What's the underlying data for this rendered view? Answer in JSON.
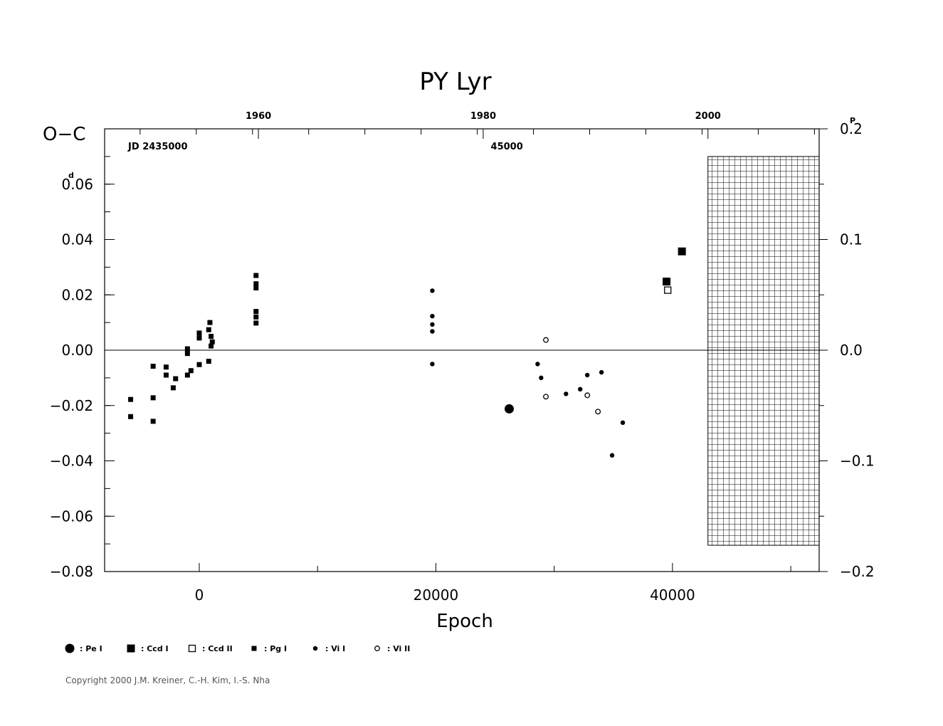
{
  "chart_data": {
    "type": "scatter",
    "title": "PY  Lyr",
    "ylabel": "O−C",
    "xlabel": "Epoch",
    "xlim": [
      -8000,
      52400
    ],
    "ylim": [
      -0.08,
      0.08
    ],
    "right_ylim": [
      -0.2,
      0.2
    ],
    "x_ticks": [
      {
        "value": 0,
        "label": "0"
      },
      {
        "value": 20000,
        "label": "20000"
      },
      {
        "value": 40000,
        "label": "40000"
      }
    ],
    "y_ticks": [
      {
        "value": 0.06,
        "label": "0.06",
        "unit": "d"
      },
      {
        "value": 0.04,
        "label": "0.04"
      },
      {
        "value": 0.02,
        "label": "0.02"
      },
      {
        "value": 0.0,
        "label": "0.00"
      },
      {
        "value": -0.02,
        "label": "−0.02"
      },
      {
        "value": -0.04,
        "label": "−0.04"
      },
      {
        "value": -0.06,
        "label": "−0.06"
      },
      {
        "value": -0.08,
        "label": "−0.08"
      }
    ],
    "right_ticks": [
      {
        "value": 0.2,
        "label": "0.2",
        "unit": "P"
      },
      {
        "value": 0.1,
        "label": "0.1"
      },
      {
        "value": 0.0,
        "label": "0.0"
      },
      {
        "value": -0.1,
        "label": "−0.1"
      },
      {
        "value": -0.2,
        "label": "−0.2"
      }
    ],
    "top_years": [
      {
        "value": 5000,
        "label": "1960"
      },
      {
        "value": 24000,
        "label": "1980"
      },
      {
        "value": 43000,
        "label": "2000"
      }
    ],
    "jd_labels": [
      {
        "value": -3500,
        "label": "JD  2435000"
      },
      {
        "value": 26000,
        "label": "45000"
      }
    ],
    "hatched_region_x_start": 43000,
    "series": [
      {
        "name": "Pe I",
        "marker": "filled-circle-large",
        "points": [
          [
            26200,
            -0.0212
          ]
        ]
      },
      {
        "name": "Ccd I",
        "marker": "filled-square-large",
        "points": [
          [
            39500,
            0.0248
          ],
          [
            40800,
            0.0357
          ]
        ]
      },
      {
        "name": "Ccd II",
        "marker": "open-square",
        "points": [
          [
            39600,
            0.0217
          ]
        ]
      },
      {
        "name": "Pg I",
        "marker": "filled-square-small",
        "points": [
          [
            -5800,
            -0.0178
          ],
          [
            -5800,
            -0.024
          ],
          [
            -3900,
            -0.0058
          ],
          [
            -3900,
            -0.0172
          ],
          [
            -3900,
            -0.0257
          ],
          [
            -2800,
            -0.0061
          ],
          [
            -2800,
            -0.009
          ],
          [
            -2200,
            -0.0136
          ],
          [
            -2000,
            -0.0103
          ],
          [
            -1000,
            0.0005
          ],
          [
            -1000,
            -0.0012
          ],
          [
            -1000,
            -0.009
          ],
          [
            -700,
            -0.0074
          ],
          [
            0,
            0.0062
          ],
          [
            0,
            0.0044
          ],
          [
            0,
            -0.0052
          ],
          [
            800,
            0.0074
          ],
          [
            900,
            0.01
          ],
          [
            800,
            -0.004
          ],
          [
            1000,
            0.005
          ],
          [
            1100,
            0.003
          ],
          [
            1000,
            0.0015
          ],
          [
            4800,
            0.027
          ],
          [
            4800,
            0.024
          ],
          [
            4800,
            0.0225
          ],
          [
            4800,
            0.014
          ],
          [
            4800,
            0.012
          ],
          [
            4800,
            0.0098
          ]
        ]
      },
      {
        "name": "Vi I",
        "marker": "filled-circle-small",
        "points": [
          [
            19700,
            0.0215
          ],
          [
            19700,
            0.0123
          ],
          [
            19700,
            0.0093
          ],
          [
            19700,
            0.0068
          ],
          [
            19700,
            -0.005
          ],
          [
            28600,
            -0.005
          ],
          [
            28900,
            -0.01
          ],
          [
            31000,
            -0.0158
          ],
          [
            32200,
            -0.0141
          ],
          [
            32800,
            -0.009
          ],
          [
            34000,
            -0.008
          ],
          [
            34900,
            -0.038
          ],
          [
            35800,
            -0.0262
          ]
        ]
      },
      {
        "name": "Vi II",
        "marker": "open-circle",
        "points": [
          [
            29300,
            0.0037
          ],
          [
            29300,
            -0.0168
          ],
          [
            32800,
            -0.0163
          ],
          [
            33700,
            -0.0222
          ]
        ]
      }
    ]
  },
  "legend": [
    {
      "marker": "filled-circle-large",
      "label": ": Pe  I"
    },
    {
      "marker": "filled-square-large",
      "label": ": Ccd  I"
    },
    {
      "marker": "open-square",
      "label": ": Ccd  II"
    },
    {
      "marker": "filled-square-small",
      "label": ": Pg  I"
    },
    {
      "marker": "filled-circle-small",
      "label": ": Vi  I"
    },
    {
      "marker": "open-circle",
      "label": ": Vi  II"
    }
  ],
  "copyright": "Copyright 2000 J.M. Kreiner, C.-H. Kim, I.-S. Nha"
}
